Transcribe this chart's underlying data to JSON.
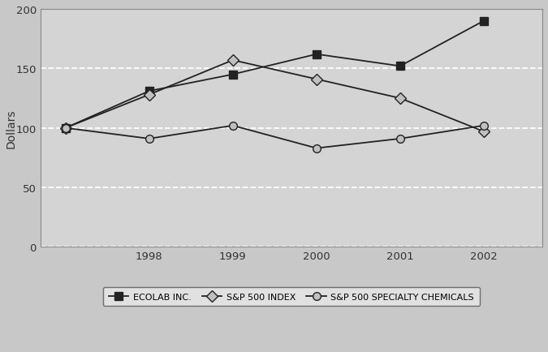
{
  "years": [
    1997,
    1998,
    1999,
    2000,
    2001,
    2002
  ],
  "ecolab": [
    100,
    131,
    145,
    162,
    152,
    190
  ],
  "sp500": [
    100,
    128,
    157,
    141,
    125,
    97
  ],
  "sp500_chem": [
    100,
    91,
    102,
    83,
    91,
    102
  ],
  "ylabel": "Dollars",
  "ylim": [
    0,
    200
  ],
  "yticks": [
    0,
    50,
    100,
    150,
    200
  ],
  "xticks": [
    1997,
    1998,
    1999,
    2000,
    2001,
    2002
  ],
  "xtick_labels": [
    "",
    "1998",
    "1999",
    "2000",
    "2001",
    "2002"
  ],
  "grid_color": "#ffffff",
  "outer_bg_color": "#c8c8c8",
  "plot_bg_color": "#d4d4d4",
  "line_color": "#222222",
  "marker_fill_dark": "#222222",
  "marker_fill_light": "#c0c0c0",
  "legend_labels": [
    "ECOLAB INC.",
    "S&P 500 INDEX",
    "S&P 500 SPECIALTY CHEMICALS"
  ],
  "legend_bg": "#e8e8e8",
  "xlim_left": 1996.7,
  "xlim_right": 2002.7
}
